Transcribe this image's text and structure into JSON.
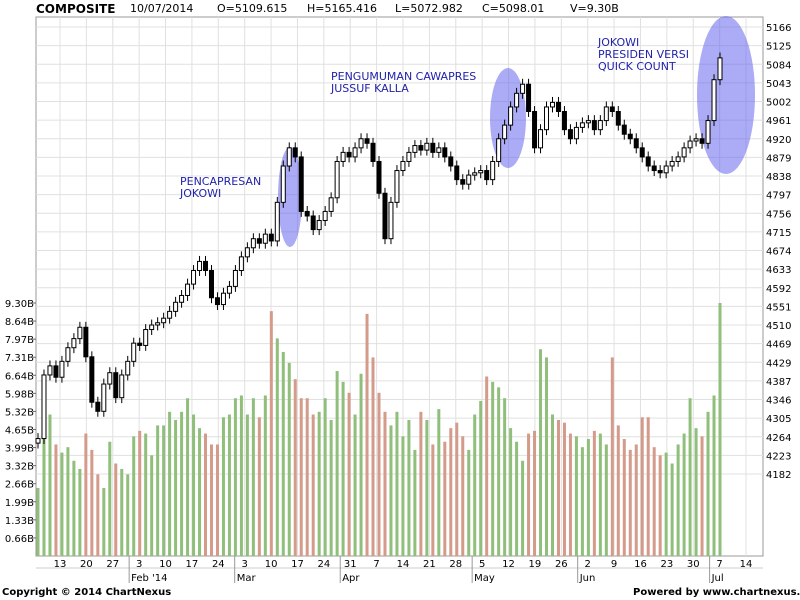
{
  "header": {
    "title": "COMPOSITE",
    "date": "10/07/2014",
    "open": "O=5109.615",
    "high": "H=5165.416",
    "low": "L=5072.982",
    "close": "C=5098.01",
    "volume": "V=9.30B"
  },
  "footer": {
    "copyright": "Copyright © 2014 ChartNexus",
    "powered": "Powered by www.chartnexus.com"
  },
  "colors": {
    "up_volume": "#8fbf7a",
    "down_volume": "#d49a8a",
    "candle": "#000000",
    "highlight": "#6666ee",
    "annotation_text": "#2222aa",
    "grid": "#e0e0e0"
  },
  "chart_data": {
    "type": "candlestick",
    "y_price_ticks": [
      4182,
      4223,
      4264,
      4305,
      4346,
      4387,
      4429,
      4469,
      4510,
      4551,
      4592,
      4633,
      4674,
      4715,
      4756,
      4797,
      4838,
      4879,
      4920,
      4961,
      5002,
      5043,
      5084,
      5125,
      5166
    ],
    "y_price_range": [
      4141,
      5166
    ],
    "y_volume_ticks": [
      "0.66B",
      "1.33B",
      "1.99B",
      "2.66B",
      "3.32B",
      "3.99B",
      "4.65B",
      "5.32B",
      "5.98B",
      "6.64B",
      "7.31B",
      "7.97B",
      "8.64B",
      "9.30B"
    ],
    "x_ticks": [
      "13",
      "20",
      "27",
      "3",
      "10",
      "17",
      "24",
      "3",
      "10",
      "17",
      "24",
      "31",
      "7",
      "14",
      "21",
      "28",
      "5",
      "12",
      "19",
      "26",
      "2",
      "9",
      "16",
      "23",
      "30",
      "7",
      "14"
    ],
    "month_labels": [
      "Feb '14",
      "Mar",
      "Apr",
      "May",
      "Jun",
      "Jul"
    ],
    "annotations": [
      {
        "lines": [
          "PENCAPRESAN",
          "JOKOWI"
        ]
      },
      {
        "lines": [
          "PENGUMUMAN CAWAPRES",
          "JUSSUF KALLA"
        ]
      },
      {
        "lines": [
          "JOKOWI",
          "PRESIDEN VERSI",
          "QUICK COUNT"
        ]
      }
    ],
    "close": [
      4260,
      4400,
      4420,
      4395,
      4430,
      4460,
      4480,
      4505,
      4440,
      4340,
      4320,
      4380,
      4405,
      4350,
      4400,
      4430,
      4470,
      4465,
      4500,
      4510,
      4515,
      4525,
      4540,
      4560,
      4575,
      4600,
      4630,
      4650,
      4630,
      4570,
      4555,
      4580,
      4595,
      4630,
      4660,
      4680,
      4700,
      4690,
      4710,
      4695,
      4780,
      4860,
      4900,
      4880,
      4760,
      4750,
      4720,
      4740,
      4760,
      4790,
      4870,
      4890,
      4880,
      4900,
      4920,
      4910,
      4870,
      4800,
      4700,
      4780,
      4850,
      4870,
      4890,
      4905,
      4895,
      4910,
      4890,
      4900,
      4880,
      4860,
      4830,
      4820,
      4840,
      4845,
      4850,
      4830,
      4870,
      4920,
      4950,
      4990,
      5020,
      5040,
      4980,
      4900,
      4940,
      4990,
      5000,
      4980,
      4940,
      4920,
      4945,
      4955,
      4960,
      4940,
      4960,
      4990,
      4980,
      4950,
      4930,
      4920,
      4900,
      4880,
      4860,
      4850,
      4845,
      4860,
      4870,
      4880,
      4900,
      4915,
      4920,
      4910,
      4960,
      5050,
      5098
    ],
    "volume": [
      2.5,
      4.5,
      5.2,
      4.1,
      3.8,
      4.0,
      3.5,
      3.2,
      4.5,
      3.9,
      3.0,
      2.5,
      4.2,
      3.4,
      3.2,
      3.0,
      4.4,
      4.6,
      4.5,
      3.7,
      4.8,
      4.8,
      5.3,
      5.0,
      5.3,
      5.8,
      5.2,
      4.7,
      4.5,
      4.1,
      4.1,
      5.1,
      5.2,
      5.8,
      5.9,
      5.2,
      5.8,
      5.1,
      5.9,
      9.0,
      8.0,
      7.5,
      7.1,
      6.5,
      5.8,
      5.8,
      5.2,
      5.3,
      5.8,
      5.0,
      6.8,
      6.4,
      6.0,
      5.2,
      6.7,
      8.9,
      7.3,
      6.0,
      5.3,
      4.8,
      5.3,
      4.4,
      5.0,
      3.9,
      5.3,
      5.0,
      4.1,
      5.4,
      4.2,
      4.7,
      4.9,
      4.4,
      3.9,
      5.2,
      5.7,
      6.6,
      6.4,
      6.2,
      5.8,
      4.7,
      4.2,
      3.5,
      4.5,
      4.6,
      7.6,
      7.3,
      5.2,
      5.0,
      4.9,
      4.5,
      4.4,
      4.0,
      4.3,
      4.6,
      4.5,
      4.1,
      7.3,
      4.8,
      4.3,
      3.9,
      4.1,
      5.1,
      5.1,
      4.0,
      3.7,
      3.8,
      3.4,
      4.1,
      4.5,
      5.8,
      4.7,
      4.4,
      5.3,
      5.9,
      9.3
    ]
  }
}
